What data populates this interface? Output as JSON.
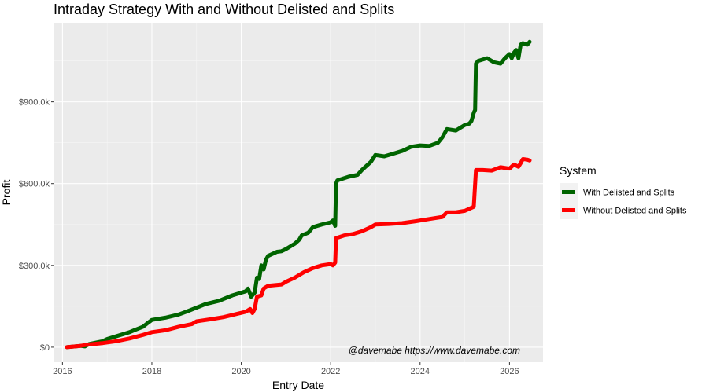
{
  "chart_data": {
    "type": "line",
    "title": "Intraday Strategy With and Without Delisted and Splits",
    "xlabel": "Entry Date",
    "ylabel": "Profit",
    "xlim": [
      2015.8,
      2026.75
    ],
    "ylim": [
      -55000,
      1190000
    ],
    "x_ticks": [
      2016,
      2018,
      2020,
      2022,
      2024,
      2026
    ],
    "x_tick_labels": [
      "2016",
      "2018",
      "2020",
      "2022",
      "2024",
      "2026"
    ],
    "y_ticks": [
      0,
      300000,
      600000,
      900000
    ],
    "y_tick_labels": [
      "$0",
      "$300.0k",
      "$600.0k",
      "$900.0k"
    ],
    "grid": true,
    "legend": {
      "title": "System",
      "position": "right"
    },
    "annotation": "@davemabe https://www.davemabe.com",
    "series": [
      {
        "name": "With Delisted and Splits",
        "color": "#006400",
        "points": [
          [
            2016.1,
            0
          ],
          [
            2016.4,
            5000
          ],
          [
            2016.5,
            3000
          ],
          [
            2016.6,
            12000
          ],
          [
            2016.9,
            22000
          ],
          [
            2017.0,
            30000
          ],
          [
            2017.3,
            45000
          ],
          [
            2017.5,
            55000
          ],
          [
            2017.6,
            62000
          ],
          [
            2017.8,
            75000
          ],
          [
            2017.9,
            88000
          ],
          [
            2018.0,
            100000
          ],
          [
            2018.3,
            108000
          ],
          [
            2018.6,
            120000
          ],
          [
            2018.8,
            132000
          ],
          [
            2019.0,
            145000
          ],
          [
            2019.2,
            158000
          ],
          [
            2019.5,
            170000
          ],
          [
            2019.8,
            190000
          ],
          [
            2020.0,
            200000
          ],
          [
            2020.1,
            205000
          ],
          [
            2020.15,
            215000
          ],
          [
            2020.2,
            195000
          ],
          [
            2020.22,
            185000
          ],
          [
            2020.3,
            200000
          ],
          [
            2020.35,
            255000
          ],
          [
            2020.4,
            250000
          ],
          [
            2020.45,
            300000
          ],
          [
            2020.5,
            285000
          ],
          [
            2020.55,
            320000
          ],
          [
            2020.6,
            335000
          ],
          [
            2020.8,
            350000
          ],
          [
            2020.9,
            352000
          ],
          [
            2021.0,
            360000
          ],
          [
            2021.2,
            380000
          ],
          [
            2021.3,
            395000
          ],
          [
            2021.35,
            410000
          ],
          [
            2021.5,
            420000
          ],
          [
            2021.6,
            440000
          ],
          [
            2021.8,
            450000
          ],
          [
            2022.0,
            458000
          ],
          [
            2022.05,
            465000
          ],
          [
            2022.1,
            445000
          ],
          [
            2022.12,
            600000
          ],
          [
            2022.15,
            612000
          ],
          [
            2022.4,
            625000
          ],
          [
            2022.6,
            632000
          ],
          [
            2022.7,
            650000
          ],
          [
            2022.9,
            680000
          ],
          [
            2023.0,
            705000
          ],
          [
            2023.2,
            700000
          ],
          [
            2023.4,
            710000
          ],
          [
            2023.6,
            720000
          ],
          [
            2023.8,
            735000
          ],
          [
            2024.0,
            740000
          ],
          [
            2024.2,
            738000
          ],
          [
            2024.4,
            750000
          ],
          [
            2024.5,
            770000
          ],
          [
            2024.6,
            800000
          ],
          [
            2024.8,
            795000
          ],
          [
            2025.0,
            815000
          ],
          [
            2025.1,
            820000
          ],
          [
            2025.15,
            830000
          ],
          [
            2025.2,
            860000
          ],
          [
            2025.23,
            870000
          ],
          [
            2025.25,
            1040000
          ],
          [
            2025.3,
            1050000
          ],
          [
            2025.5,
            1060000
          ],
          [
            2025.65,
            1045000
          ],
          [
            2025.8,
            1040000
          ],
          [
            2025.9,
            1060000
          ],
          [
            2026.0,
            1075000
          ],
          [
            2026.05,
            1060000
          ],
          [
            2026.1,
            1080000
          ],
          [
            2026.15,
            1090000
          ],
          [
            2026.2,
            1060000
          ],
          [
            2026.25,
            1110000
          ],
          [
            2026.3,
            1115000
          ],
          [
            2026.4,
            1110000
          ],
          [
            2026.45,
            1120000
          ]
        ]
      },
      {
        "name": "Without Delisted and Splits",
        "color": "#ff0000",
        "points": [
          [
            2016.1,
            0
          ],
          [
            2016.4,
            5000
          ],
          [
            2016.6,
            10000
          ],
          [
            2016.9,
            15000
          ],
          [
            2017.2,
            22000
          ],
          [
            2017.5,
            32000
          ],
          [
            2017.8,
            45000
          ],
          [
            2018.0,
            55000
          ],
          [
            2018.3,
            62000
          ],
          [
            2018.6,
            75000
          ],
          [
            2018.9,
            85000
          ],
          [
            2019.0,
            95000
          ],
          [
            2019.3,
            102000
          ],
          [
            2019.6,
            110000
          ],
          [
            2019.9,
            122000
          ],
          [
            2020.1,
            130000
          ],
          [
            2020.2,
            140000
          ],
          [
            2020.25,
            125000
          ],
          [
            2020.3,
            140000
          ],
          [
            2020.35,
            185000
          ],
          [
            2020.45,
            190000
          ],
          [
            2020.5,
            215000
          ],
          [
            2020.6,
            225000
          ],
          [
            2020.9,
            230000
          ],
          [
            2021.0,
            240000
          ],
          [
            2021.2,
            255000
          ],
          [
            2021.4,
            275000
          ],
          [
            2021.6,
            290000
          ],
          [
            2021.8,
            300000
          ],
          [
            2022.0,
            305000
          ],
          [
            2022.05,
            300000
          ],
          [
            2022.1,
            310000
          ],
          [
            2022.12,
            400000
          ],
          [
            2022.3,
            410000
          ],
          [
            2022.5,
            415000
          ],
          [
            2022.7,
            425000
          ],
          [
            2022.9,
            440000
          ],
          [
            2023.0,
            450000
          ],
          [
            2023.3,
            452000
          ],
          [
            2023.6,
            455000
          ],
          [
            2023.9,
            462000
          ],
          [
            2024.2,
            470000
          ],
          [
            2024.5,
            478000
          ],
          [
            2024.6,
            495000
          ],
          [
            2024.8,
            495000
          ],
          [
            2025.0,
            500000
          ],
          [
            2025.2,
            515000
          ],
          [
            2025.25,
            650000
          ],
          [
            2025.4,
            650000
          ],
          [
            2025.6,
            648000
          ],
          [
            2025.8,
            660000
          ],
          [
            2026.0,
            655000
          ],
          [
            2026.1,
            670000
          ],
          [
            2026.2,
            662000
          ],
          [
            2026.25,
            675000
          ],
          [
            2026.3,
            690000
          ],
          [
            2026.4,
            688000
          ],
          [
            2026.45,
            685000
          ]
        ]
      }
    ]
  }
}
